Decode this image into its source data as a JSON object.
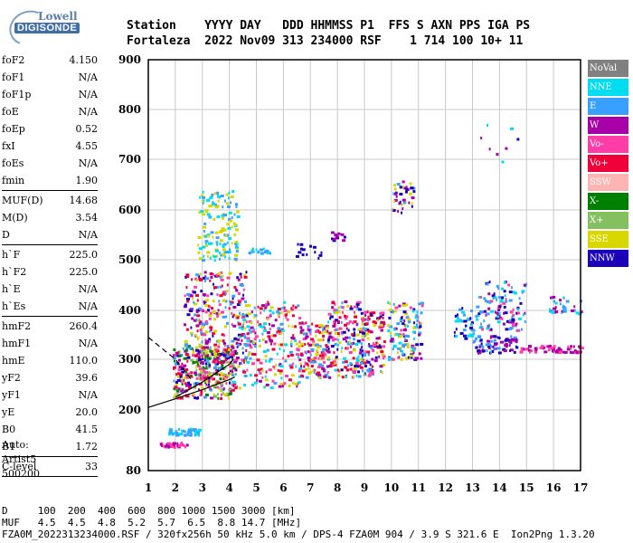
{
  "logo": {
    "line1": "Lowell",
    "line2": "DIGISONDE"
  },
  "header": {
    "line1": "Station    YYYY DAY   DDD HHMMSS P1  FFS S AXN PPS IGA PS",
    "line2": "Fortaleza  2022 Nov09 313 234000 RSF    1 714 100 10+ 11"
  },
  "params_groups": [
    [
      {
        "label": "foF2",
        "value": "4.150"
      },
      {
        "label": "foF1",
        "value": "N/A"
      },
      {
        "label": "foF1p",
        "value": "N/A"
      },
      {
        "label": "foE",
        "value": "N/A"
      },
      {
        "label": "foEp",
        "value": "0.52"
      },
      {
        "label": "fxI",
        "value": "4.55"
      },
      {
        "label": "foEs",
        "value": "N/A"
      },
      {
        "label": "fmin",
        "value": "1.90"
      }
    ],
    [
      {
        "label": "MUF(D)",
        "value": "14.68"
      },
      {
        "label": "M(D)",
        "value": "3.54"
      },
      {
        "label": "D",
        "value": "N/A"
      }
    ],
    [
      {
        "label": "h`F",
        "value": "225.0"
      },
      {
        "label": "h`F2",
        "value": "225.0"
      },
      {
        "label": "h`E",
        "value": "N/A"
      },
      {
        "label": "h`Es",
        "value": "N/A"
      }
    ],
    [
      {
        "label": "hmF2",
        "value": "260.4"
      },
      {
        "label": "hmF1",
        "value": "N/A"
      },
      {
        "label": "hmE",
        "value": "110.0"
      },
      {
        "label": "yF2",
        "value": "39.6"
      },
      {
        "label": "yF1",
        "value": "N/A"
      },
      {
        "label": "yE",
        "value": "20.0"
      },
      {
        "label": "B0",
        "value": "41.5"
      },
      {
        "label": "B1",
        "value": "1.72"
      }
    ],
    [
      {
        "label": "C-level",
        "value": "33"
      }
    ]
  ],
  "auto": {
    "line1": "Auto:",
    "line2": "Artist5",
    "line3": "500200"
  },
  "legend": [
    {
      "label": "NoVal",
      "color": "#808080"
    },
    {
      "label": "NNE",
      "color": "#00dcf0"
    },
    {
      "label": "E",
      "color": "#3aa0ff"
    },
    {
      "label": "W",
      "color": "#a800a8"
    },
    {
      "label": "Vo-",
      "color": "#ff3ca8"
    },
    {
      "label": "Vo+",
      "color": "#f00038"
    },
    {
      "label": "SSW",
      "color": "#ffb4b4"
    },
    {
      "label": "X-",
      "color": "#008000"
    },
    {
      "label": "X+",
      "color": "#84c060"
    },
    {
      "label": "SSE",
      "color": "#d8d800"
    },
    {
      "label": "NNW",
      "color": "#1a00b8"
    }
  ],
  "bottom": {
    "line1": "D     100  200  400  600  800 1000 1500 3000 [km]",
    "line2": "MUF   4.5  4.5  4.8  5.2  5.7  6.5  8.8 14.7 [MHz]",
    "line3": "FZA0M_2022313234000.RSF / 320fx256h 50 kHz 5.0 km / DPS-4 FZA0M 904 / 3.9 S 321.6 E  Ion2Png 1.3.20"
  },
  "chart_data": {
    "type": "scatter",
    "title": "",
    "xlabel": "",
    "ylabel": "",
    "x_ticks": [
      1,
      2,
      3,
      4,
      5,
      6,
      7,
      8,
      9,
      10,
      11,
      12,
      13,
      14,
      15,
      16,
      17
    ],
    "y_ticks": [
      80,
      200,
      300,
      400,
      500,
      600,
      700,
      800,
      900
    ],
    "xlim": [
      1,
      17
    ],
    "ylim": [
      80,
      900
    ],
    "grid": true,
    "legend_placement": "right",
    "traces": [
      {
        "name": "dashed_trace",
        "style": "dashed",
        "points": [
          [
            1.0,
            345
          ],
          [
            2.0,
            300
          ],
          [
            2.6,
            260
          ]
        ]
      },
      {
        "name": "profile_lower",
        "style": "solid",
        "points": [
          [
            1.0,
            205
          ],
          [
            2.0,
            222
          ],
          [
            3.0,
            240
          ],
          [
            4.0,
            260
          ],
          [
            4.2,
            265
          ]
        ]
      },
      {
        "name": "profile_upper",
        "style": "solid",
        "points": [
          [
            2.0,
            225
          ],
          [
            3.0,
            255
          ],
          [
            4.0,
            290
          ],
          [
            4.15,
            300
          ]
        ]
      }
    ],
    "echo_clusters": [
      {
        "x": [
          1.9,
          4.2
        ],
        "y": [
          225,
          330
        ],
        "n": 360,
        "colors": [
          "#ff3ca8",
          "#f00038",
          "#a800a8",
          "#d8d800",
          "#3aa0ff",
          "#008000",
          "#1a00b8",
          "#84c060"
        ]
      },
      {
        "x": [
          2.3,
          4.6
        ],
        "y": [
          300,
          480
        ],
        "n": 260,
        "colors": [
          "#ff3ca8",
          "#f00038",
          "#a800a8",
          "#3aa0ff",
          "#1a00b8",
          "#d8d800"
        ]
      },
      {
        "x": [
          4.0,
          6.6
        ],
        "y": [
          245,
          420
        ],
        "n": 280,
        "colors": [
          "#00dcf0",
          "#3aa0ff",
          "#ff3ca8",
          "#d8d800",
          "#f00038",
          "#a800a8"
        ]
      },
      {
        "x": [
          6.6,
          7.6
        ],
        "y": [
          265,
          380
        ],
        "n": 140,
        "colors": [
          "#f00038",
          "#ff3ca8",
          "#d8d800",
          "#a800a8",
          "#3aa0ff"
        ]
      },
      {
        "x": [
          7.6,
          8.8
        ],
        "y": [
          265,
          420
        ],
        "n": 170,
        "colors": [
          "#1a00b8",
          "#a800a8",
          "#3aa0ff",
          "#00dcf0",
          "#f00038",
          "#ff3ca8",
          "#d8d800"
        ]
      },
      {
        "x": [
          8.8,
          9.7
        ],
        "y": [
          270,
          400
        ],
        "n": 140,
        "colors": [
          "#f00038",
          "#a800a8",
          "#1a00b8",
          "#3aa0ff",
          "#ff3ca8",
          "#d8d800"
        ]
      },
      {
        "x": [
          9.8,
          11.1
        ],
        "y": [
          300,
          420
        ],
        "n": 140,
        "colors": [
          "#1a00b8",
          "#3aa0ff",
          "#d8d800",
          "#00dcf0",
          "#a800a8",
          "#ff3ca8"
        ]
      },
      {
        "x": [
          12.3,
          13.2
        ],
        "y": [
          340,
          410
        ],
        "n": 45,
        "colors": [
          "#3aa0ff",
          "#00dcf0",
          "#1a00b8"
        ]
      },
      {
        "x": [
          13.2,
          15.0
        ],
        "y": [
          360,
          460
        ],
        "n": 110,
        "colors": [
          "#00dcf0",
          "#3aa0ff",
          "#a800a8",
          "#ff3ca8",
          "#1a00b8"
        ]
      },
      {
        "x": [
          13.0,
          14.6
        ],
        "y": [
          315,
          350
        ],
        "n": 80,
        "colors": [
          "#1a00b8",
          "#3aa0ff",
          "#a800a8"
        ]
      },
      {
        "x": [
          14.7,
          17.0
        ],
        "y": [
          316,
          330
        ],
        "n": 70,
        "colors": [
          "#a800a8",
          "#ff3ca8"
        ]
      },
      {
        "x": [
          15.8,
          17.0
        ],
        "y": [
          395,
          430
        ],
        "n": 35,
        "colors": [
          "#3aa0ff",
          "#a800a8",
          "#00dcf0"
        ]
      },
      {
        "x": [
          2.8,
          4.3
        ],
        "y": [
          500,
          640
        ],
        "n": 140,
        "colors": [
          "#d8d800",
          "#00dcf0",
          "#3aa0ff"
        ]
      },
      {
        "x": [
          4.6,
          5.6
        ],
        "y": [
          515,
          525
        ],
        "n": 18,
        "colors": [
          "#3aa0ff",
          "#00dcf0"
        ]
      },
      {
        "x": [
          6.2,
          7.4
        ],
        "y": [
          505,
          535
        ],
        "n": 14,
        "colors": [
          "#1a00b8"
        ]
      },
      {
        "x": [
          7.7,
          8.3
        ],
        "y": [
          540,
          560
        ],
        "n": 12,
        "colors": [
          "#1a00b8",
          "#a800a8"
        ]
      },
      {
        "x": [
          10.0,
          10.8
        ],
        "y": [
          595,
          665
        ],
        "n": 40,
        "colors": [
          "#1a00b8",
          "#a800a8",
          "#d8d800",
          "#3aa0ff"
        ]
      },
      {
        "x": [
          1.7,
          2.9
        ],
        "y": [
          152,
          165
        ],
        "n": 55,
        "colors": [
          "#3aa0ff",
          "#00dcf0"
        ]
      },
      {
        "x": [
          1.4,
          2.4
        ],
        "y": [
          128,
          138
        ],
        "n": 40,
        "colors": [
          "#a800a8",
          "#ff3ca8"
        ]
      },
      {
        "x": [
          13.2,
          14.7
        ],
        "y": [
          690,
          775
        ],
        "n": 8,
        "colors": [
          "#1a00b8",
          "#a800a8",
          "#d8d800",
          "#00dcf0"
        ]
      }
    ]
  }
}
